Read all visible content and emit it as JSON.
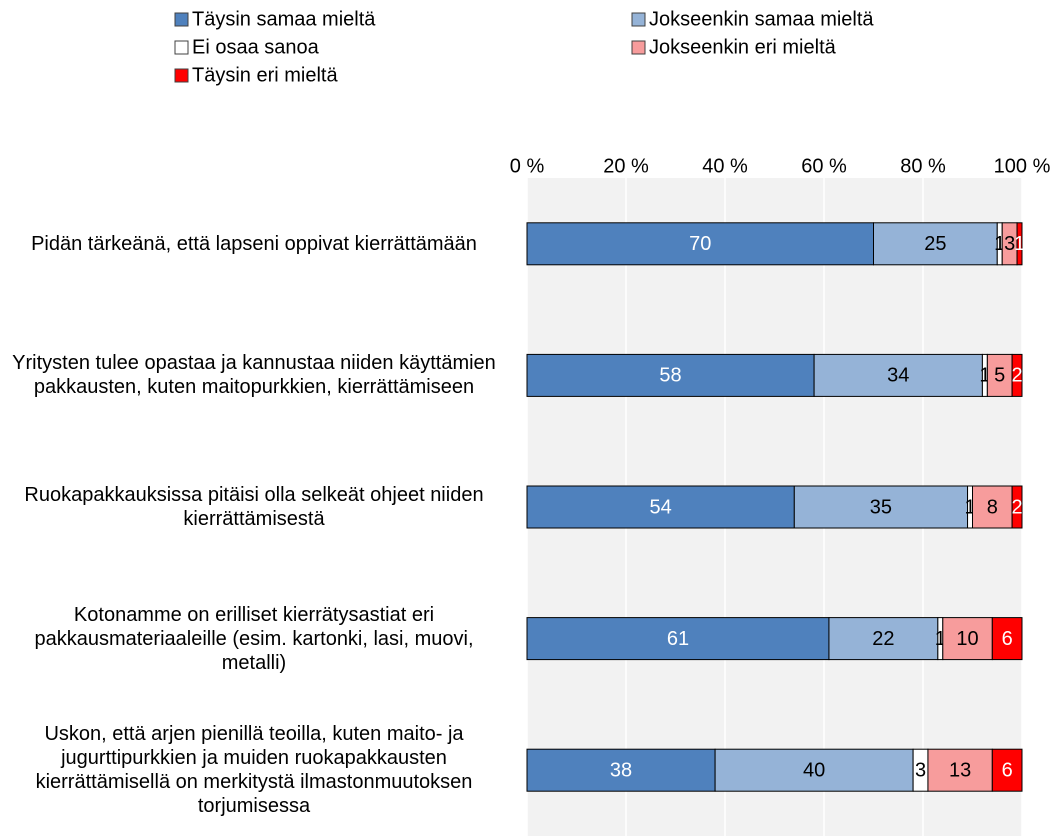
{
  "chart_data": {
    "type": "stacked_barh",
    "categories": [
      "Pidän tärkeänä, että lapseni oppivat kierrättämään",
      "Yritysten tulee opastaa ja kannustaa niiden käyttämien pakkausten, kuten maitopurkkien, kierrättämiseen",
      "Ruokapakkauksissa pitäisi olla selkeät ohjeet niiden kierrättämisestä",
      "Kotonamme on erilliset kierrätysastiat eri pakkausmateriaaleille (esim. kartonki, lasi, muovi, metalli)",
      "Uskon, että arjen pienillä teoilla, kuten maito- ja jugurttipurkkien ja muiden ruokapakkausten kierrättämisellä on merkitystä ilmastonmuutoksen torjumisessa"
    ],
    "series": [
      {
        "name": "Täysin samaa mieltä",
        "color": "#4f81bd",
        "label_color": "#ffffff",
        "values": [
          70,
          58,
          54,
          61,
          38
        ]
      },
      {
        "name": "Jokseenkin samaa mieltä",
        "color": "#95b3d7",
        "label_color": "#000000",
        "values": [
          25,
          34,
          35,
          22,
          40
        ]
      },
      {
        "name": "Ei osaa sanoa",
        "color": "#ffffff",
        "label_color": "#000000",
        "values": [
          1,
          1,
          1,
          1,
          3
        ]
      },
      {
        "name": "Jokseenkin eri mieltä",
        "color": "#f79c9c",
        "label_color": "#000000",
        "values": [
          3,
          5,
          8,
          10,
          13
        ]
      },
      {
        "name": "Täysin eri mieltä",
        "color": "#ff0000",
        "label_color": "#ffffff",
        "values": [
          1,
          2,
          2,
          6,
          6
        ]
      }
    ],
    "xlim": [
      0,
      100
    ],
    "xticks": [
      {
        "value": 0,
        "label": "0 %"
      },
      {
        "value": 20,
        "label": "20 %"
      },
      {
        "value": 40,
        "label": "40 %"
      },
      {
        "value": 60,
        "label": "60 %"
      },
      {
        "value": 80,
        "label": "80 %"
      },
      {
        "value": 100,
        "label": "100 %"
      }
    ],
    "grid": true
  }
}
